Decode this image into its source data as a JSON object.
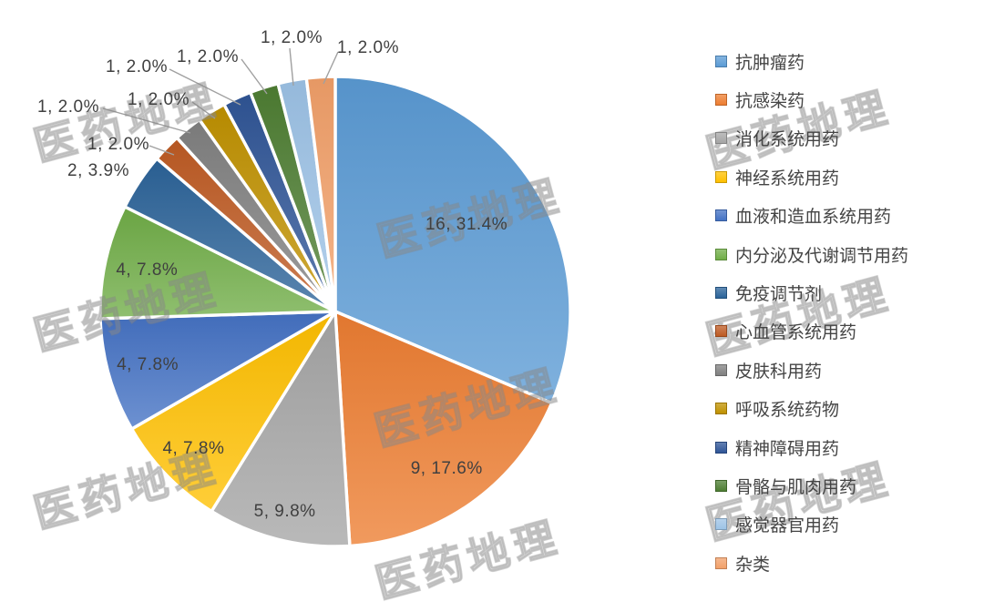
{
  "watermark": {
    "text": "医药地理",
    "color": "#969696"
  },
  "chart_data": {
    "type": "pie",
    "title": "",
    "total": 51,
    "start_angle_deg": 0,
    "direction": "clockwise",
    "grid": false,
    "legend_position": "right",
    "label_format": "value, percent",
    "label_color": "#404040",
    "separator_color": "#ffffff",
    "slices": [
      {
        "name": "抗肿瘤药",
        "value": 16,
        "pct": 31.4,
        "label": "16, 31.4%",
        "color": "#5B9BD5",
        "label_position": "inside"
      },
      {
        "name": "抗感染药",
        "value": 9,
        "pct": 17.6,
        "label": "9, 17.6%",
        "color": "#ED7D31",
        "label_position": "inside"
      },
      {
        "name": "消化系统用药",
        "value": 5,
        "pct": 9.8,
        "label": "5, 9.8%",
        "color": "#A5A5A5",
        "label_position": "inside"
      },
      {
        "name": "神经系统用药",
        "value": 4,
        "pct": 7.8,
        "label": "4, 7.8%",
        "color": "#FFC000",
        "label_position": "inside"
      },
      {
        "name": "血液和造血系统用药",
        "value": 4,
        "pct": 7.8,
        "label": "4, 7.8%",
        "color": "#4472C4",
        "label_position": "inside"
      },
      {
        "name": "内分泌及代谢调节用药",
        "value": 4,
        "pct": 7.8,
        "label": "4, 7.8%",
        "color": "#70AD47",
        "label_position": "inside"
      },
      {
        "name": "免疫调节剂",
        "value": 2,
        "pct": 3.9,
        "label": "2, 3.9%",
        "color": "#2B6399",
        "label_position": "outside"
      },
      {
        "name": "心血管系统用药",
        "value": 1,
        "pct": 2.0,
        "label": "1, 2.0%",
        "color": "#BE5A23",
        "label_position": "outside"
      },
      {
        "name": "皮肤科用药",
        "value": 1,
        "pct": 2.0,
        "label": "1, 2.0%",
        "color": "#808080",
        "label_position": "outside"
      },
      {
        "name": "呼吸系统药物",
        "value": 1,
        "pct": 2.0,
        "label": "1, 2.0%",
        "color": "#C09100",
        "label_position": "outside"
      },
      {
        "name": "精神障碍用药",
        "value": 1,
        "pct": 2.0,
        "label": "1, 2.0%",
        "color": "#2F5597",
        "label_position": "outside"
      },
      {
        "name": "骨骼与肌肉用药",
        "value": 1,
        "pct": 2.0,
        "label": "1, 2.0%",
        "color": "#4E7E33",
        "label_position": "outside"
      },
      {
        "name": "感觉器官用药",
        "value": 1,
        "pct": 2.0,
        "label": "1, 2.0%",
        "color": "#9DC3E6",
        "label_position": "outside"
      },
      {
        "name": "杂类",
        "value": 1,
        "pct": 2.0,
        "label": "1, 2.0%",
        "color": "#F2A069",
        "label_position": "outside"
      }
    ]
  }
}
